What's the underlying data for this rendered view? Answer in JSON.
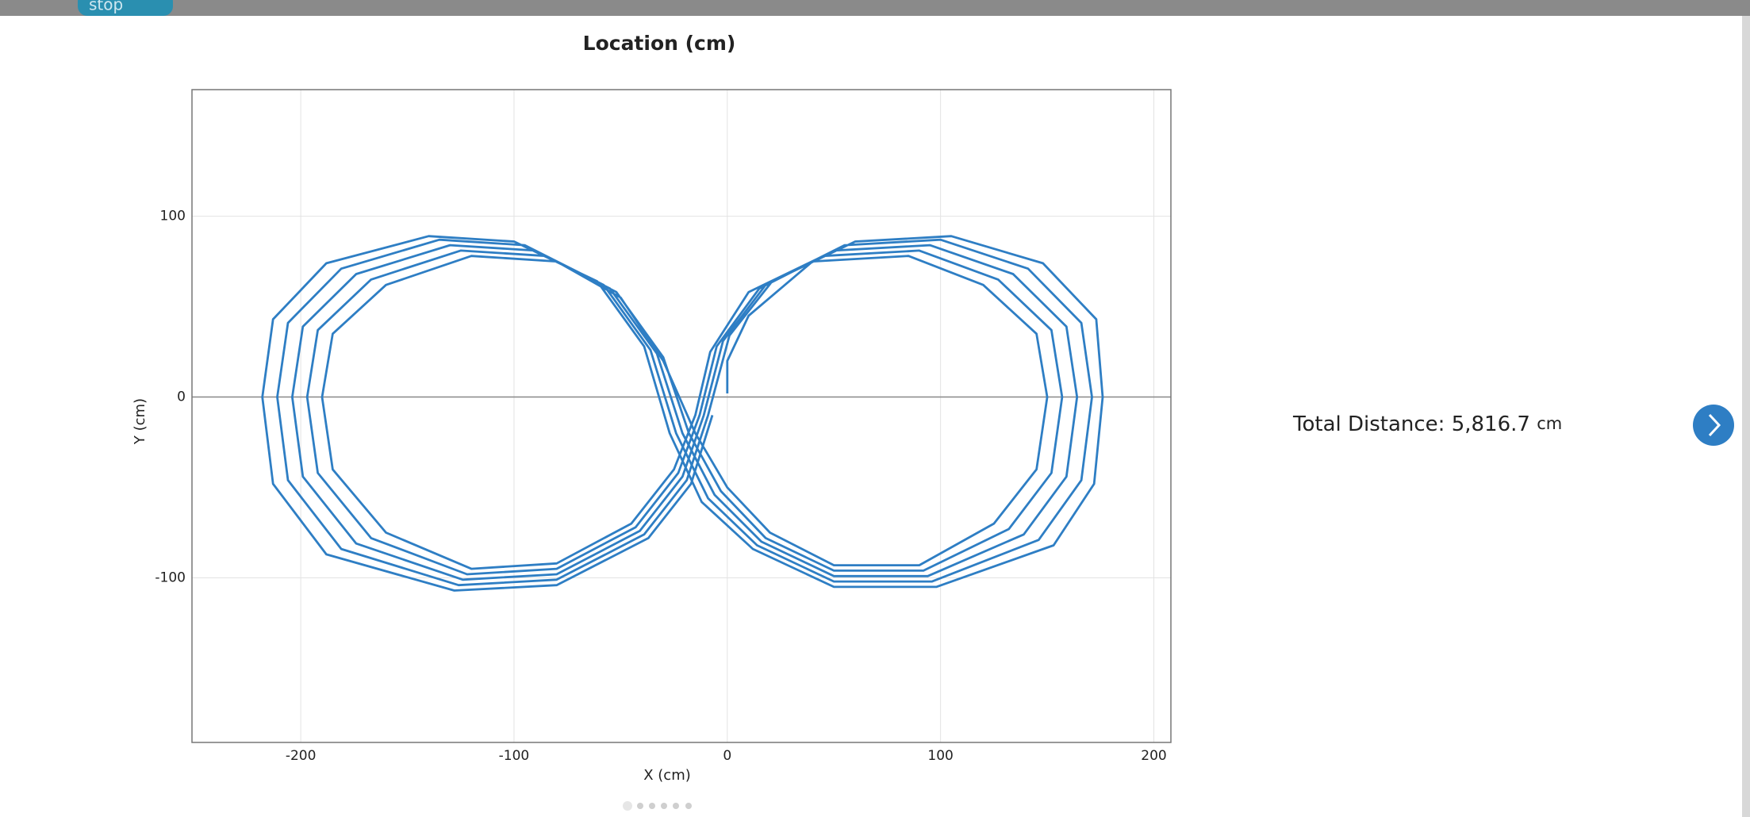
{
  "stop_button": "stop",
  "chart_data": {
    "type": "line",
    "title": "Location (cm)",
    "x_label": "X (cm)",
    "y_label": "Y (cm)",
    "color": "#2e7ec4",
    "x": [
      0,
      0,
      10,
      40,
      85,
      120,
      145,
      150,
      145,
      125,
      90,
      50,
      20,
      0,
      -15,
      -30,
      -50,
      -80,
      -120,
      -160,
      -185,
      -190,
      -185,
      -160,
      -120,
      -80,
      -45,
      -25,
      -15,
      -8,
      10,
      45,
      90,
      127,
      152,
      157,
      152,
      132,
      92,
      50,
      18,
      -3,
      -18,
      -30,
      -52,
      -85,
      -125,
      -167,
      -192,
      -197,
      -192,
      -167,
      -122,
      -80,
      -43,
      -23,
      -13,
      -5,
      15,
      50,
      95,
      134,
      159,
      164,
      159,
      139,
      94,
      50,
      16,
      -6,
      -21,
      -33,
      -55,
      -90,
      -130,
      -174,
      -199,
      -204,
      -199,
      -174,
      -124,
      -80,
      -41,
      -21,
      -11,
      -2,
      18,
      55,
      100,
      141,
      166,
      171,
      166,
      146,
      96,
      50,
      14,
      -9,
      -24,
      -36,
      -58,
      -95,
      -135,
      -181,
      -206,
      -211,
      -206,
      -181,
      -126,
      -80,
      -39,
      -19,
      -9,
      1,
      21,
      60,
      105,
      148,
      173,
      176,
      172,
      153,
      98,
      50,
      12,
      -12,
      -27,
      -39,
      -61,
      -100,
      -140,
      -188,
      -213,
      -218,
      -213,
      -188,
      -128,
      -80,
      -37,
      -17,
      -7
    ],
    "values": [
      2,
      20,
      45,
      75,
      78,
      62,
      35,
      0,
      -40,
      -70,
      -93,
      -93,
      -75,
      -50,
      -20,
      20,
      55,
      75,
      78,
      62,
      35,
      0,
      -40,
      -75,
      -95,
      -92,
      -70,
      -40,
      -10,
      25,
      58,
      78,
      81,
      65,
      37,
      0,
      -42,
      -73,
      -96,
      -96,
      -78,
      -52,
      -20,
      22,
      58,
      78,
      81,
      65,
      37,
      0,
      -42,
      -78,
      -98,
      -95,
      -72,
      -42,
      -10,
      28,
      60,
      81,
      84,
      68,
      39,
      0,
      -44,
      -76,
      -99,
      -99,
      -80,
      -54,
      -20,
      24,
      60,
      81,
      84,
      68,
      39,
      0,
      -44,
      -81,
      -101,
      -98,
      -74,
      -44,
      -10,
      31,
      62,
      84,
      87,
      71,
      41,
      0,
      -46,
      -79,
      -102,
      -102,
      -82,
      -56,
      -20,
      26,
      62,
      84,
      87,
      71,
      41,
      0,
      -46,
      -84,
      -104,
      -101,
      -76,
      -46,
      -10,
      34,
      64,
      86,
      89,
      74,
      43,
      0,
      -48,
      -82,
      -105,
      -105,
      -84,
      -58,
      -20,
      28,
      64,
      86,
      89,
      74,
      43,
      0,
      -48,
      -87,
      -107,
      -104,
      -78,
      -48,
      -10
    ],
    "xlim": [
      -251,
      208
    ],
    "ylim": [
      -191,
      170
    ],
    "xticks": [
      -200,
      -100,
      0,
      100,
      200
    ],
    "yticks": [
      -100,
      0,
      100
    ],
    "grid": true
  },
  "total_distance": {
    "label": "Total Distance:",
    "value": "5,816.7",
    "unit": "cm"
  }
}
